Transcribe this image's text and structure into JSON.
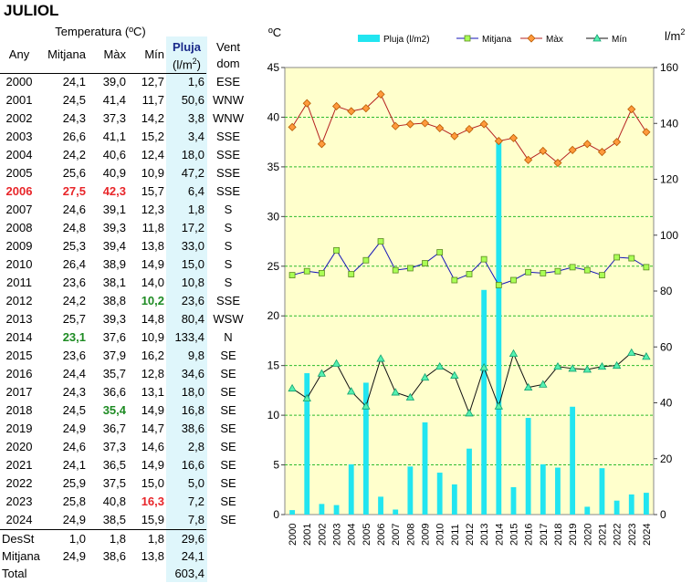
{
  "title": "JULIOL",
  "table": {
    "group_header": "Temperatura (ºC)",
    "col_any": "Any",
    "col_mitjana": "Mitjana",
    "col_max": "Màx",
    "col_min": "Mín",
    "col_pluja": "Pluja",
    "col_pluja_unit": "(l/m",
    "col_pluja_unit_sup": "2",
    "col_pluja_unit_end": ")",
    "col_vent": "Vent",
    "col_vent2": "dom",
    "rows": [
      {
        "any": "2000",
        "mitjana": "24,1",
        "max": "39,0",
        "min": "12,7",
        "pluja": "1,6",
        "vent": "ESE",
        "hl": {}
      },
      {
        "any": "2001",
        "mitjana": "24,5",
        "max": "41,4",
        "min": "11,7",
        "pluja": "50,6",
        "vent": "WNW",
        "hl": {}
      },
      {
        "any": "2002",
        "mitjana": "24,3",
        "max": "37,3",
        "min": "14,2",
        "pluja": "3,8",
        "vent": "WNW",
        "hl": {}
      },
      {
        "any": "2003",
        "mitjana": "26,6",
        "max": "41,1",
        "min": "15,2",
        "pluja": "3,4",
        "vent": "SSE",
        "hl": {}
      },
      {
        "any": "2004",
        "mitjana": "24,2",
        "max": "40,6",
        "min": "12,4",
        "pluja": "18,0",
        "vent": "SSE",
        "hl": {}
      },
      {
        "any": "2005",
        "mitjana": "25,6",
        "max": "40,9",
        "min": "10,9",
        "pluja": "47,2",
        "vent": "SSE",
        "hl": {}
      },
      {
        "any": "2006",
        "mitjana": "27,5",
        "max": "42,3",
        "min": "15,7",
        "pluja": "6,4",
        "vent": "SSE",
        "hl": {
          "any": "red",
          "mitjana": "red",
          "max": "red"
        }
      },
      {
        "any": "2007",
        "mitjana": "24,6",
        "max": "39,1",
        "min": "12,3",
        "pluja": "1,8",
        "vent": "S",
        "hl": {}
      },
      {
        "any": "2008",
        "mitjana": "24,8",
        "max": "39,3",
        "min": "11,8",
        "pluja": "17,2",
        "vent": "S",
        "hl": {}
      },
      {
        "any": "2009",
        "mitjana": "25,3",
        "max": "39,4",
        "min": "13,8",
        "pluja": "33,0",
        "vent": "S",
        "hl": {}
      },
      {
        "any": "2010",
        "mitjana": "26,4",
        "max": "38,9",
        "min": "14,9",
        "pluja": "15,0",
        "vent": "S",
        "hl": {}
      },
      {
        "any": "2011",
        "mitjana": "23,6",
        "max": "38,1",
        "min": "14,0",
        "pluja": "10,8",
        "vent": "S",
        "hl": {}
      },
      {
        "any": "2012",
        "mitjana": "24,2",
        "max": "38,8",
        "min": "10,2",
        "pluja": "23,6",
        "vent": "SSE",
        "hl": {
          "min": "green"
        }
      },
      {
        "any": "2013",
        "mitjana": "25,7",
        "max": "39,3",
        "min": "14,8",
        "pluja": "80,4",
        "vent": "WSW",
        "hl": {}
      },
      {
        "any": "2014",
        "mitjana": "23,1",
        "max": "37,6",
        "min": "10,9",
        "pluja": "133,4",
        "vent": "N",
        "hl": {
          "mitjana": "green"
        }
      },
      {
        "any": "2015",
        "mitjana": "23,6",
        "max": "37,9",
        "min": "16,2",
        "pluja": "9,8",
        "vent": "SE",
        "hl": {}
      },
      {
        "any": "2016",
        "mitjana": "24,4",
        "max": "35,7",
        "min": "12,8",
        "pluja": "34,6",
        "vent": "SE",
        "hl": {}
      },
      {
        "any": "2017",
        "mitjana": "24,3",
        "max": "36,6",
        "min": "13,1",
        "pluja": "18,0",
        "vent": "SE",
        "hl": {}
      },
      {
        "any": "2018",
        "mitjana": "24,5",
        "max": "35,4",
        "min": "14,9",
        "pluja": "16,8",
        "vent": "SE",
        "hl": {
          "max": "green"
        }
      },
      {
        "any": "2019",
        "mitjana": "24,9",
        "max": "36,7",
        "min": "14,7",
        "pluja": "38,6",
        "vent": "SE",
        "hl": {}
      },
      {
        "any": "2020",
        "mitjana": "24,6",
        "max": "37,3",
        "min": "14,6",
        "pluja": "2,8",
        "vent": "SE",
        "hl": {}
      },
      {
        "any": "2021",
        "mitjana": "24,1",
        "max": "36,5",
        "min": "14,9",
        "pluja": "16,6",
        "vent": "SE",
        "hl": {}
      },
      {
        "any": "2022",
        "mitjana": "25,9",
        "max": "37,5",
        "min": "15,0",
        "pluja": "5,0",
        "vent": "SE",
        "hl": {}
      },
      {
        "any": "2023",
        "mitjana": "25,8",
        "max": "40,8",
        "min": "16,3",
        "pluja": "7,2",
        "vent": "SE",
        "hl": {
          "min": "red"
        }
      },
      {
        "any": "2024",
        "mitjana": "24,9",
        "max": "38,5",
        "min": "15,9",
        "pluja": "7,8",
        "vent": "SE",
        "hl": {}
      }
    ],
    "summary": [
      {
        "label": "DesSt",
        "mitjana": "1,0",
        "max": "1,8",
        "min": "1,8",
        "pluja": "29,6"
      },
      {
        "label": "Mitjana",
        "mitjana": "24,9",
        "max": "38,6",
        "min": "13,8",
        "pluja": "24,1"
      },
      {
        "label": "Total",
        "mitjana": "",
        "max": "",
        "min": "",
        "pluja": "603,4"
      }
    ]
  },
  "chart_data": {
    "type": "bar+line",
    "x": [
      "2000",
      "2001",
      "2002",
      "2003",
      "2004",
      "2005",
      "2006",
      "2007",
      "2008",
      "2009",
      "2010",
      "2011",
      "2012",
      "2013",
      "2014",
      "2015",
      "2016",
      "2017",
      "2018",
      "2019",
      "2020",
      "2021",
      "2022",
      "2023",
      "2024"
    ],
    "left_axis_label": "ºC",
    "right_axis_label": "l/m",
    "right_axis_label_sup": "2",
    "ylim_left": [
      0,
      45
    ],
    "yticks_left": [
      0,
      5,
      10,
      15,
      20,
      25,
      30,
      35,
      40,
      45
    ],
    "ylim_right": [
      0,
      160
    ],
    "yticks_right": [
      0,
      20,
      40,
      60,
      80,
      100,
      120,
      140,
      160
    ],
    "grid": true,
    "legend_position": "top",
    "series": [
      {
        "name": "Pluja (l/m2)",
        "type": "bar",
        "axis": "right",
        "color": "#22e5f0",
        "values": [
          1.6,
          50.6,
          3.8,
          3.4,
          18.0,
          47.2,
          6.4,
          1.8,
          17.2,
          33.0,
          15.0,
          10.8,
          23.6,
          80.4,
          133.4,
          9.8,
          34.6,
          18.0,
          16.8,
          38.6,
          2.8,
          16.6,
          5.0,
          7.2,
          7.8
        ]
      },
      {
        "name": "Mitjana",
        "type": "line",
        "axis": "left",
        "color": "#1616b8",
        "marker": "square",
        "marker_color": "#aaff55",
        "values": [
          24.1,
          24.5,
          24.3,
          26.6,
          24.2,
          25.6,
          27.5,
          24.6,
          24.8,
          25.3,
          26.4,
          23.6,
          24.2,
          25.7,
          23.1,
          23.6,
          24.4,
          24.3,
          24.5,
          24.9,
          24.6,
          24.1,
          25.9,
          25.8,
          24.9
        ]
      },
      {
        "name": "Màx",
        "type": "line",
        "axis": "left",
        "color": "#b52020",
        "marker": "diamond",
        "marker_color": "#ff9a3c",
        "values": [
          39.0,
          41.4,
          37.3,
          41.1,
          40.6,
          40.9,
          42.3,
          39.1,
          39.3,
          39.4,
          38.9,
          38.1,
          38.8,
          39.3,
          37.6,
          37.9,
          35.7,
          36.6,
          35.4,
          36.7,
          37.3,
          36.5,
          37.5,
          40.8,
          38.5
        ]
      },
      {
        "name": "Mín",
        "type": "line",
        "axis": "left",
        "color": "#111111",
        "marker": "triangle",
        "marker_color": "#55f0b0",
        "values": [
          12.7,
          11.7,
          14.2,
          15.2,
          12.4,
          10.9,
          15.7,
          12.3,
          11.8,
          13.8,
          14.9,
          14.0,
          10.2,
          14.8,
          10.9,
          16.2,
          12.8,
          13.1,
          14.9,
          14.7,
          14.6,
          14.9,
          15.0,
          16.3,
          15.9
        ]
      }
    ],
    "plot_bg": "#ffffcc",
    "grid_color": "#2dbb2d"
  }
}
